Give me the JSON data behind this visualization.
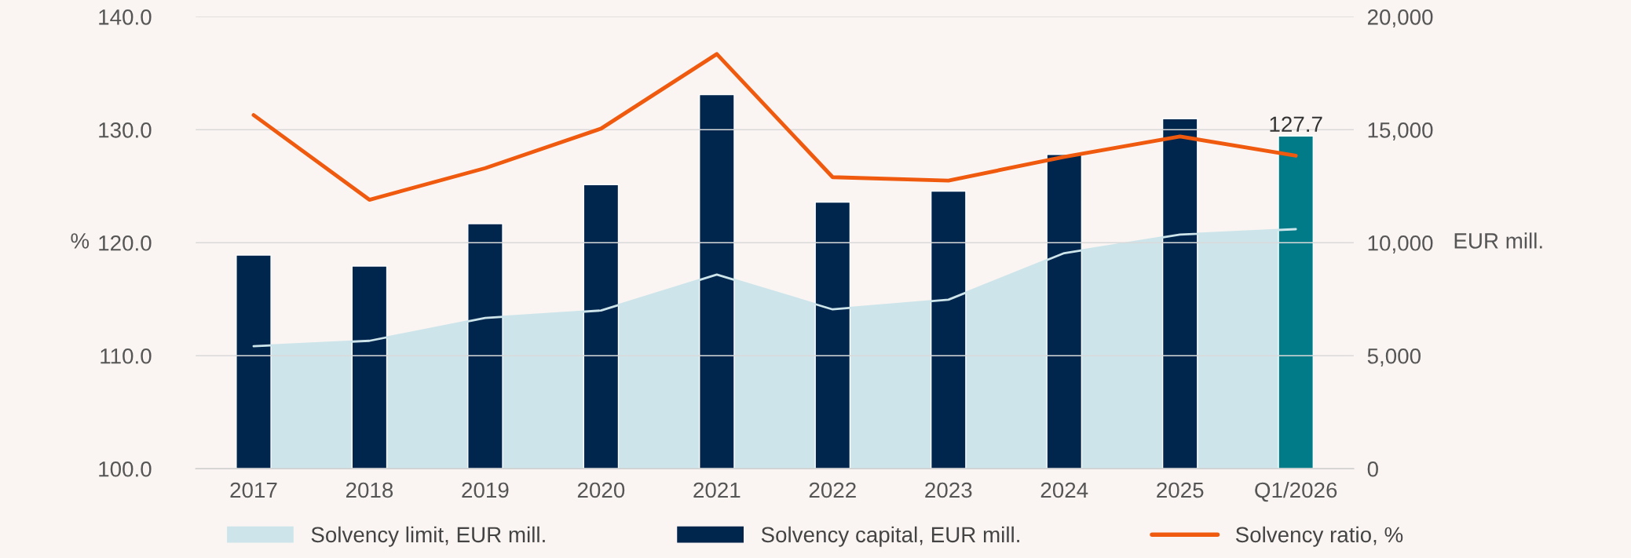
{
  "chart_data": {
    "type": "bar",
    "categories": [
      "2017",
      "2018",
      "2019",
      "2020",
      "2021",
      "2022",
      "2023",
      "2024",
      "2025",
      "Q1/2026"
    ],
    "ylabel": "%",
    "y2label": "EUR mill.",
    "ylim": [
      100,
      140
    ],
    "yticks": [
      {
        "value": 100,
        "label": "100.0"
      },
      {
        "value": 110,
        "label": "110.0"
      },
      {
        "value": 120,
        "label": "120.0"
      },
      {
        "value": 130,
        "label": "130.0"
      },
      {
        "value": 140,
        "label": "140.0"
      }
    ],
    "y2lim": [
      0,
      20000
    ],
    "y2ticks": [
      0,
      {
        "value": 5000,
        "label": "5,000"
      },
      {
        "value": 10000,
        "label": "10,000"
      },
      {
        "value": 15000,
        "label": "15,000"
      },
      {
        "value": 20000,
        "label": "20,000"
      }
    ],
    "grid": "y",
    "legend": "bottom",
    "series": [
      {
        "type": "area",
        "axis": "y2",
        "name": "Solvency limit, EUR mill.",
        "color": "#cde5ea",
        "values": [
          5420,
          5660,
          6670,
          7000,
          8590,
          7050,
          7480,
          9540,
          10360,
          10600
        ]
      },
      {
        "axis": "y2",
        "name": "Solvency capital, EUR mill.",
        "color": "#00264d",
        "colors": [
          "#00264d",
          "#00264d",
          "#00264d",
          "#00264d",
          "#00264d",
          "#00264d",
          "#00264d",
          "#00264d",
          "#00264d",
          "#007b87"
        ],
        "values": [
          9450,
          8970,
          10840,
          12570,
          16550,
          11800,
          12280,
          13910,
          15490,
          14720
        ]
      },
      {
        "type": "line",
        "axis": "y",
        "name": "Solvency ratio, %",
        "color": "#f05a0f",
        "values": [
          131.3,
          123.8,
          126.6,
          130.1,
          136.7,
          125.8,
          125.5,
          127.6,
          129.4,
          127.7
        ],
        "value_labels": [
          null,
          null,
          null,
          null,
          null,
          null,
          null,
          null,
          null,
          "127.7"
        ]
      }
    ]
  }
}
